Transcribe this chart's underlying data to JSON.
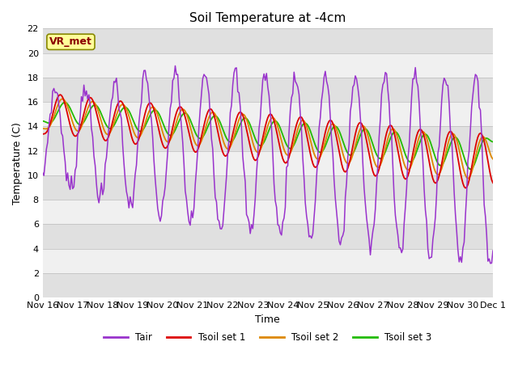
{
  "title": "Soil Temperature at -4cm",
  "xlabel": "Time",
  "ylabel": "Temperature (C)",
  "ylim": [
    0,
    22
  ],
  "xlim": [
    0,
    360
  ],
  "background_color": "#ffffff",
  "band_colors": [
    "#e0e0e0",
    "#f0f0f0"
  ],
  "line_colors": {
    "Tair": "#9933cc",
    "Tsoil_set1": "#dd0000",
    "Tsoil_set2": "#dd8800",
    "Tsoil_set3": "#22bb00"
  },
  "legend_labels": [
    "Tair",
    "Tsoil set 1",
    "Tsoil set 2",
    "Tsoil set 3"
  ],
  "vr_met_label": "VR_met",
  "xtick_labels": [
    "Nov 16",
    "Nov 17",
    "Nov 18",
    "Nov 19",
    "Nov 20",
    "Nov 21",
    "Nov 22",
    "Nov 23",
    "Nov 24",
    "Nov 25",
    "Nov 26",
    "Nov 27",
    "Nov 28",
    "Nov 29",
    "Nov 30",
    "Dec 1"
  ],
  "xtick_positions": [
    0,
    24,
    48,
    72,
    96,
    120,
    144,
    168,
    192,
    216,
    240,
    264,
    288,
    312,
    336,
    360
  ]
}
